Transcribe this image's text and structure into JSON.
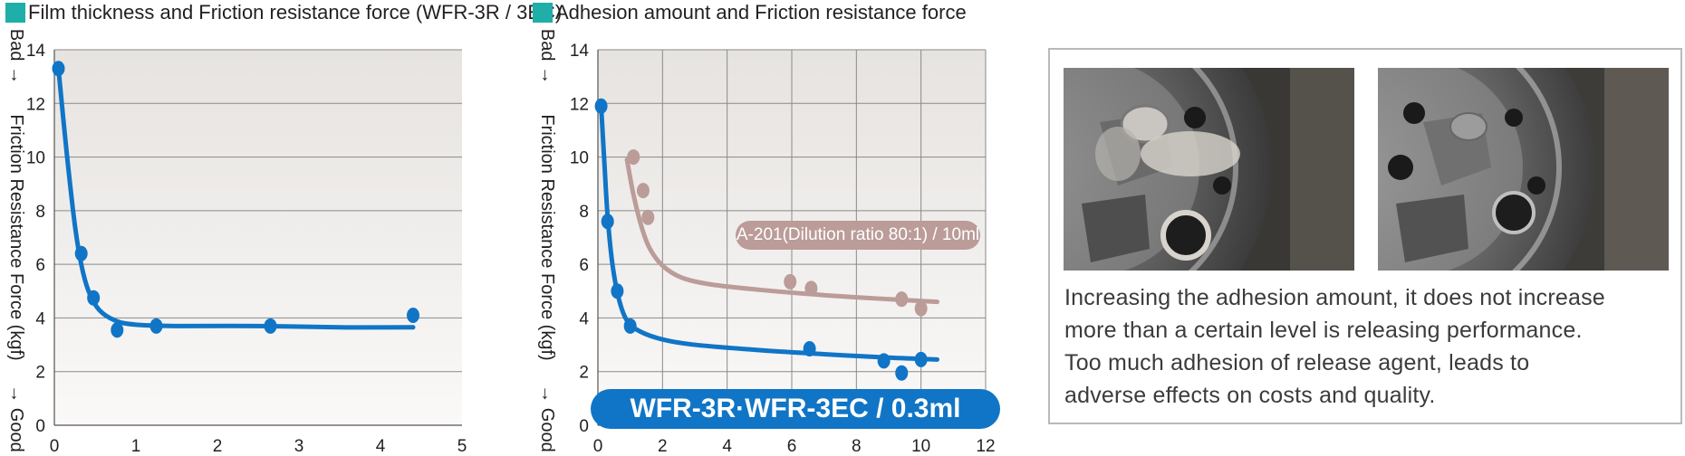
{
  "chart_data": [
    {
      "type": "line",
      "title": "Film thickness and Friction resistance force (WFR-3R / 3EC)",
      "ylabel": "Friction Resistance Force (kgf)",
      "ylabel_top": "Bad →",
      "ylabel_bottom": "→ Good",
      "xlim": [
        0,
        5
      ],
      "ylim": [
        0,
        14
      ],
      "x_ticks": [
        "0",
        "1",
        "2",
        "3",
        "4",
        "5"
      ],
      "y_ticks": [
        "0",
        "2",
        "4",
        "6",
        "8",
        "10",
        "12",
        "14"
      ],
      "grid": "horizontal",
      "series": [
        {
          "color": "#1075c6",
          "points": [
            [
              0.05,
              13.3
            ],
            [
              0.33,
              6.4
            ],
            [
              0.48,
              4.75
            ],
            [
              0.77,
              3.55
            ],
            [
              1.25,
              3.7
            ],
            [
              2.65,
              3.7
            ],
            [
              4.4,
              4.1
            ]
          ],
          "curve": [
            [
              0.05,
              13.3
            ],
            [
              0.15,
              10.2
            ],
            [
              0.25,
              7.5
            ],
            [
              0.33,
              6.0
            ],
            [
              0.42,
              5.0
            ],
            [
              0.55,
              4.3
            ],
            [
              0.75,
              3.9
            ],
            [
              1.0,
              3.75
            ],
            [
              1.5,
              3.7
            ],
            [
              2.5,
              3.7
            ],
            [
              3.5,
              3.65
            ],
            [
              4.4,
              3.65
            ]
          ]
        }
      ]
    },
    {
      "type": "line",
      "title": "Adhesion amount and Friction resistance force",
      "ylabel": "Friction Resistance Force (kgf)",
      "ylabel_top": "Bad →",
      "ylabel_bottom": "→ Good",
      "xlim": [
        0,
        12
      ],
      "ylim": [
        0,
        14
      ],
      "x_ticks": [
        "0",
        "2",
        "4",
        "6",
        "8",
        "10",
        "12"
      ],
      "y_ticks": [
        "0",
        "2",
        "4",
        "6",
        "8",
        "10",
        "12",
        "14"
      ],
      "grid": "both",
      "series": [
        {
          "name": "A-201(Dilution ratio 80:1) / 10ml",
          "color": "#bb9c98",
          "points": [
            [
              1.1,
              10.0
            ],
            [
              1.4,
              8.75
            ],
            [
              1.55,
              7.75
            ],
            [
              5.95,
              5.35
            ],
            [
              6.6,
              5.1
            ],
            [
              9.4,
              4.7
            ],
            [
              10.0,
              4.35
            ]
          ],
          "curve": [
            [
              0.9,
              9.9
            ],
            [
              1.1,
              8.6
            ],
            [
              1.35,
              7.4
            ],
            [
              1.6,
              6.6
            ],
            [
              2.0,
              5.95
            ],
            [
              2.6,
              5.5
            ],
            [
              3.5,
              5.25
            ],
            [
              5.0,
              5.05
            ],
            [
              7.0,
              4.85
            ],
            [
              9.0,
              4.7
            ],
            [
              10.5,
              4.6
            ]
          ]
        },
        {
          "name": "WFR-3R·WFR-3EC / 0.3ml",
          "color": "#1075c6",
          "points": [
            [
              0.1,
              11.9
            ],
            [
              0.3,
              7.6
            ],
            [
              0.6,
              5.0
            ],
            [
              1.0,
              3.7
            ],
            [
              6.55,
              2.85
            ],
            [
              8.85,
              2.4
            ],
            [
              9.4,
              1.95
            ],
            [
              10.0,
              2.45
            ]
          ],
          "curve": [
            [
              0.1,
              11.9
            ],
            [
              0.2,
              9.8
            ],
            [
              0.3,
              7.8
            ],
            [
              0.45,
              6.0
            ],
            [
              0.65,
              4.7
            ],
            [
              0.9,
              3.9
            ],
            [
              1.3,
              3.5
            ],
            [
              2.0,
              3.2
            ],
            [
              3.0,
              3.0
            ],
            [
              5.0,
              2.8
            ],
            [
              7.0,
              2.65
            ],
            [
              9.0,
              2.52
            ],
            [
              10.5,
              2.45
            ]
          ]
        }
      ]
    }
  ],
  "photo_panel": {
    "images": [
      "left-photo-used-part",
      "right-photo-clean-part"
    ],
    "description": [
      "Increasing the adhesion amount, it does not increase",
      "more than a certain level is releasing performance.",
      "Too much adhesion of release agent, leads to",
      "adverse effects on costs and quality."
    ]
  }
}
